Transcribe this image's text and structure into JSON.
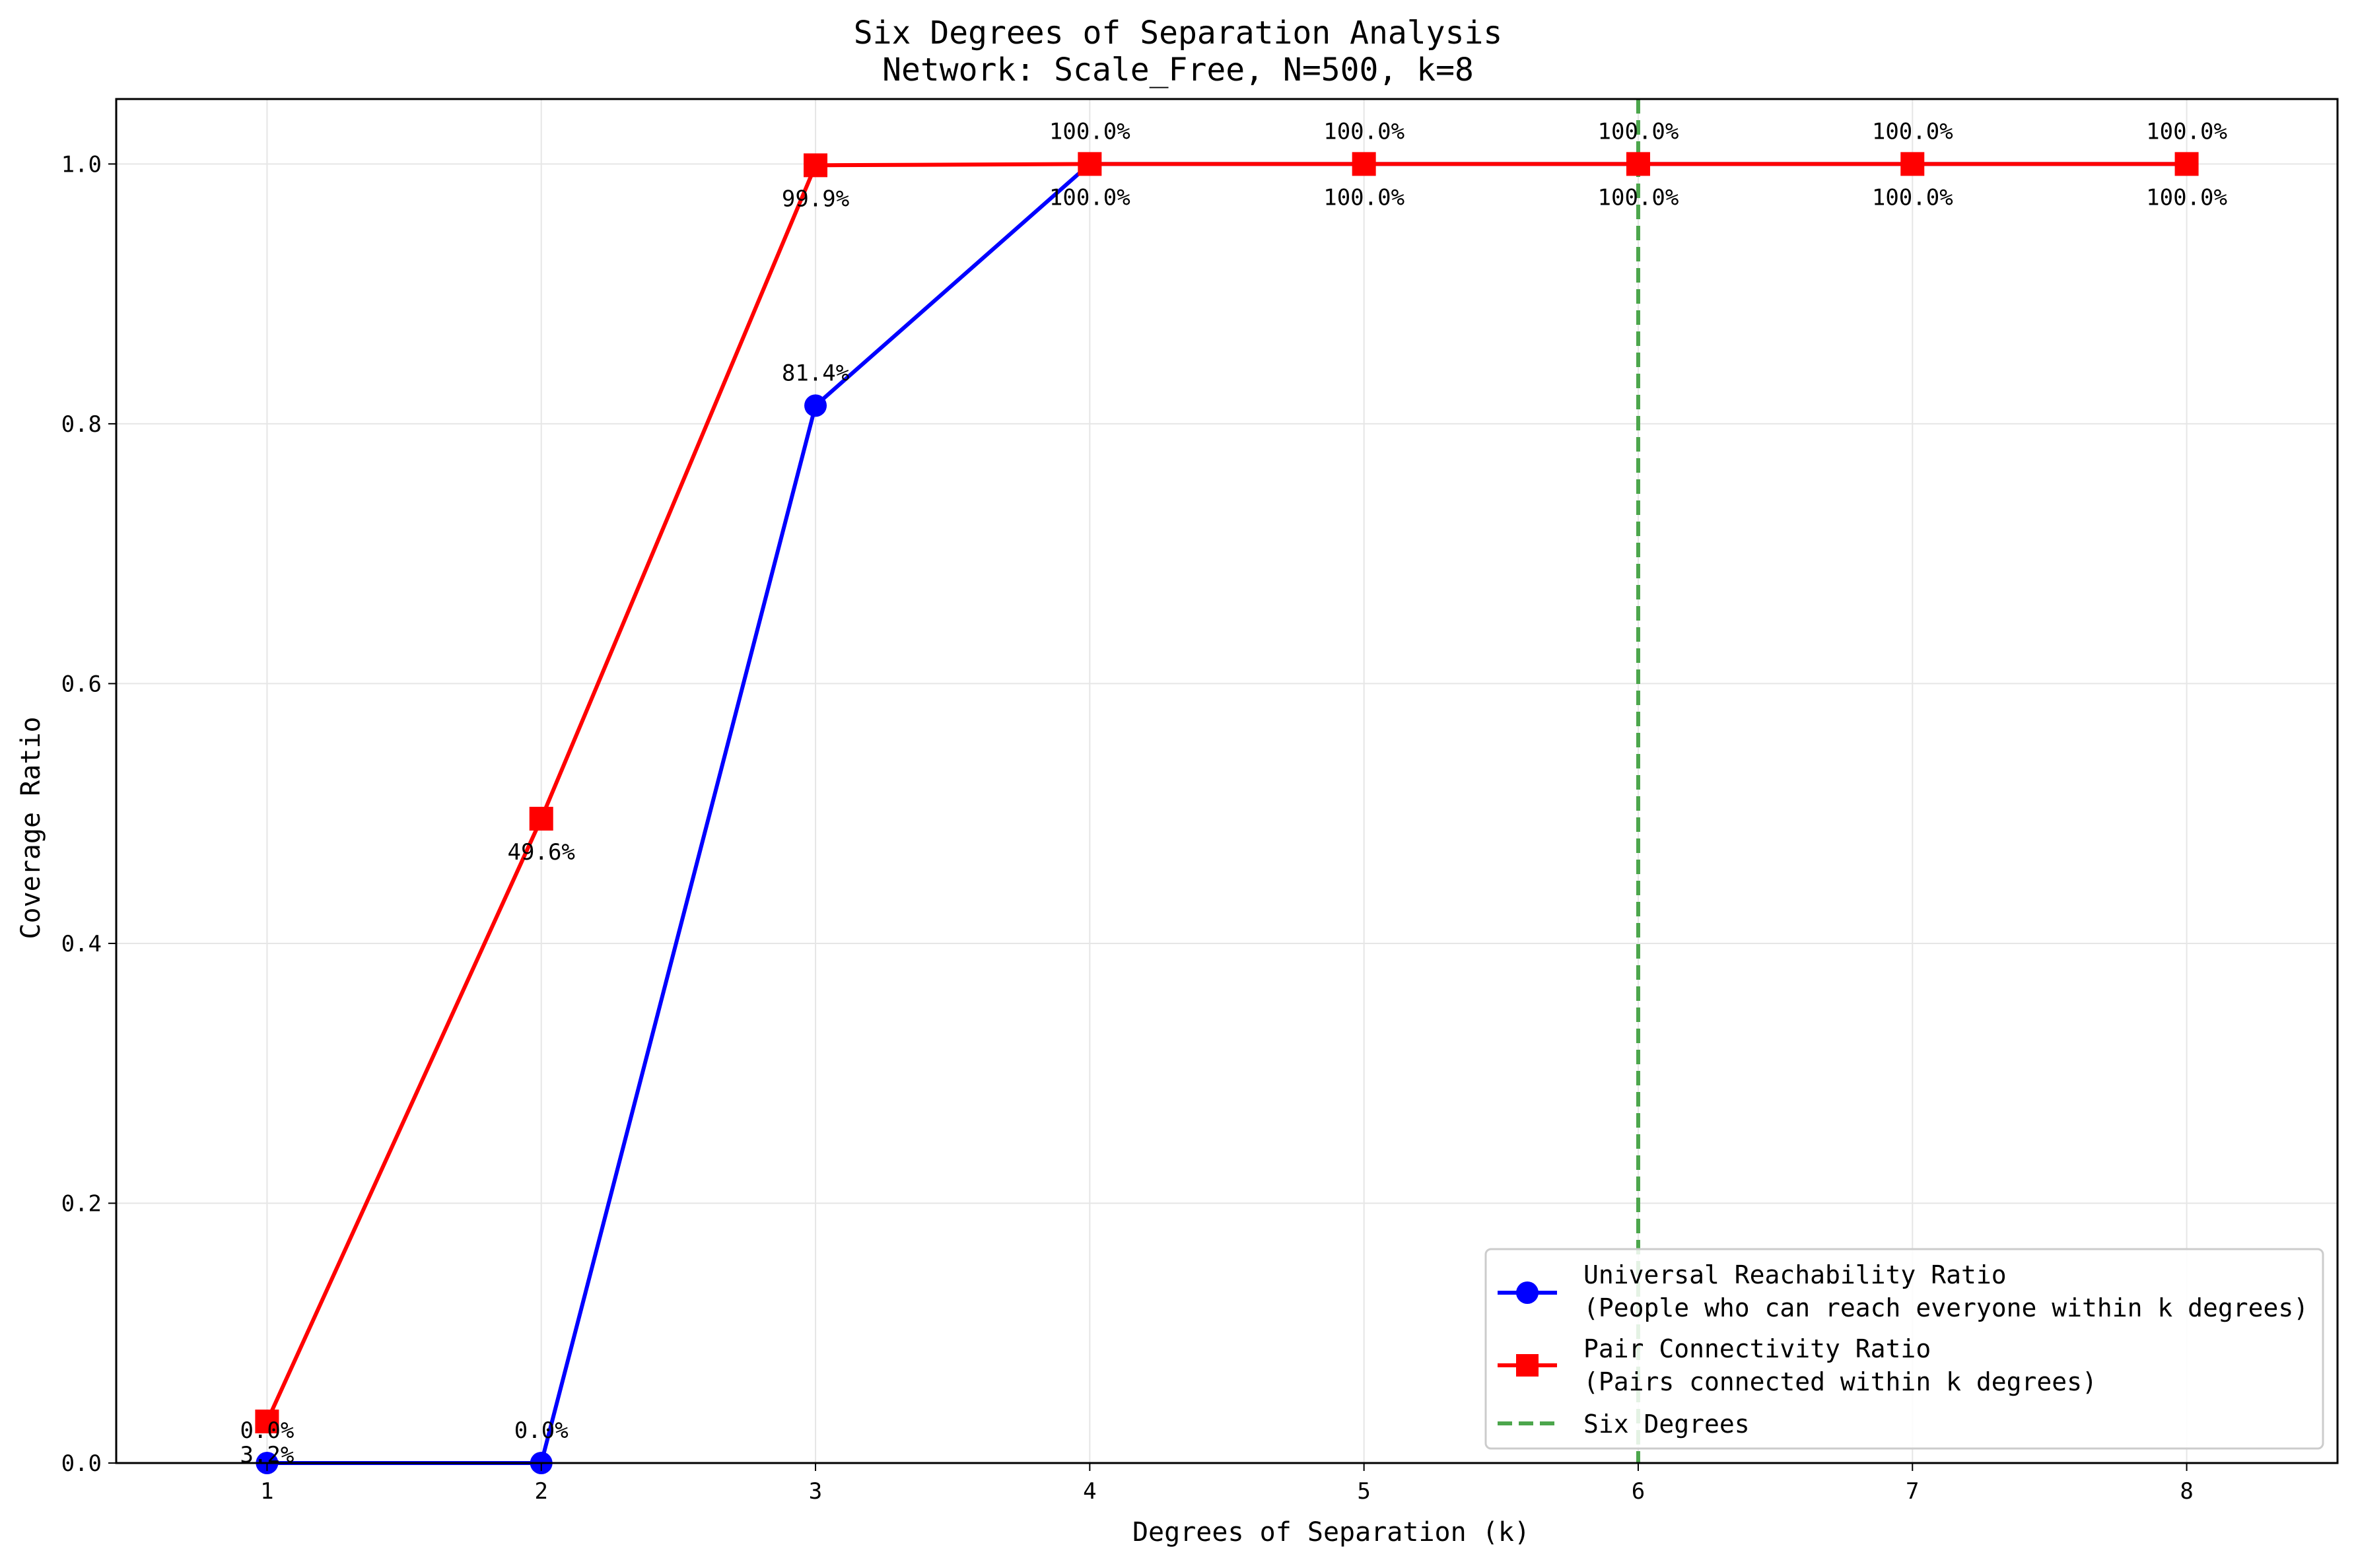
{
  "chart_data": {
    "type": "line",
    "title": "Six Degrees of Separation Analysis",
    "subtitle": "Network: Scale_Free, N=500, k=8",
    "xlabel": "Degrees of Separation (k)",
    "ylabel": "Coverage Ratio",
    "x": [
      1,
      2,
      3,
      4,
      5,
      6,
      7,
      8
    ],
    "xlim": [
      0.45,
      8.55
    ],
    "ylim": [
      0.0,
      1.05
    ],
    "xticks": [
      "1",
      "2",
      "3",
      "4",
      "5",
      "6",
      "7",
      "8"
    ],
    "yticks": [
      "0.0",
      "0.2",
      "0.4",
      "0.6",
      "0.8",
      "1.0"
    ],
    "grid": true,
    "legend_position": "lower right",
    "series": [
      {
        "name": "Universal Reachability Ratio",
        "description": "(People who can reach everyone within k degrees)",
        "color": "#0000ff",
        "marker": "circle",
        "values": [
          0.0,
          0.0,
          0.814,
          1.0,
          1.0,
          1.0,
          1.0,
          1.0
        ],
        "labels": [
          "0.0%",
          "0.0%",
          "81.4%",
          "100.0%",
          "100.0%",
          "100.0%",
          "100.0%",
          "100.0%"
        ]
      },
      {
        "name": "Pair Connectivity Ratio",
        "description": "(Pairs connected within k degrees)",
        "color": "#ff0000",
        "marker": "square",
        "values": [
          0.032,
          0.496,
          0.999,
          1.0,
          1.0,
          1.0,
          1.0,
          1.0
        ],
        "labels": [
          "3.2%",
          "49.6%",
          "99.9%",
          "100.0%",
          "100.0%",
          "100.0%",
          "100.0%",
          "100.0%"
        ]
      }
    ],
    "reference_line": {
      "name": "Six Degrees",
      "x": 6,
      "color": "#4ca64c",
      "style": "dashed"
    }
  }
}
